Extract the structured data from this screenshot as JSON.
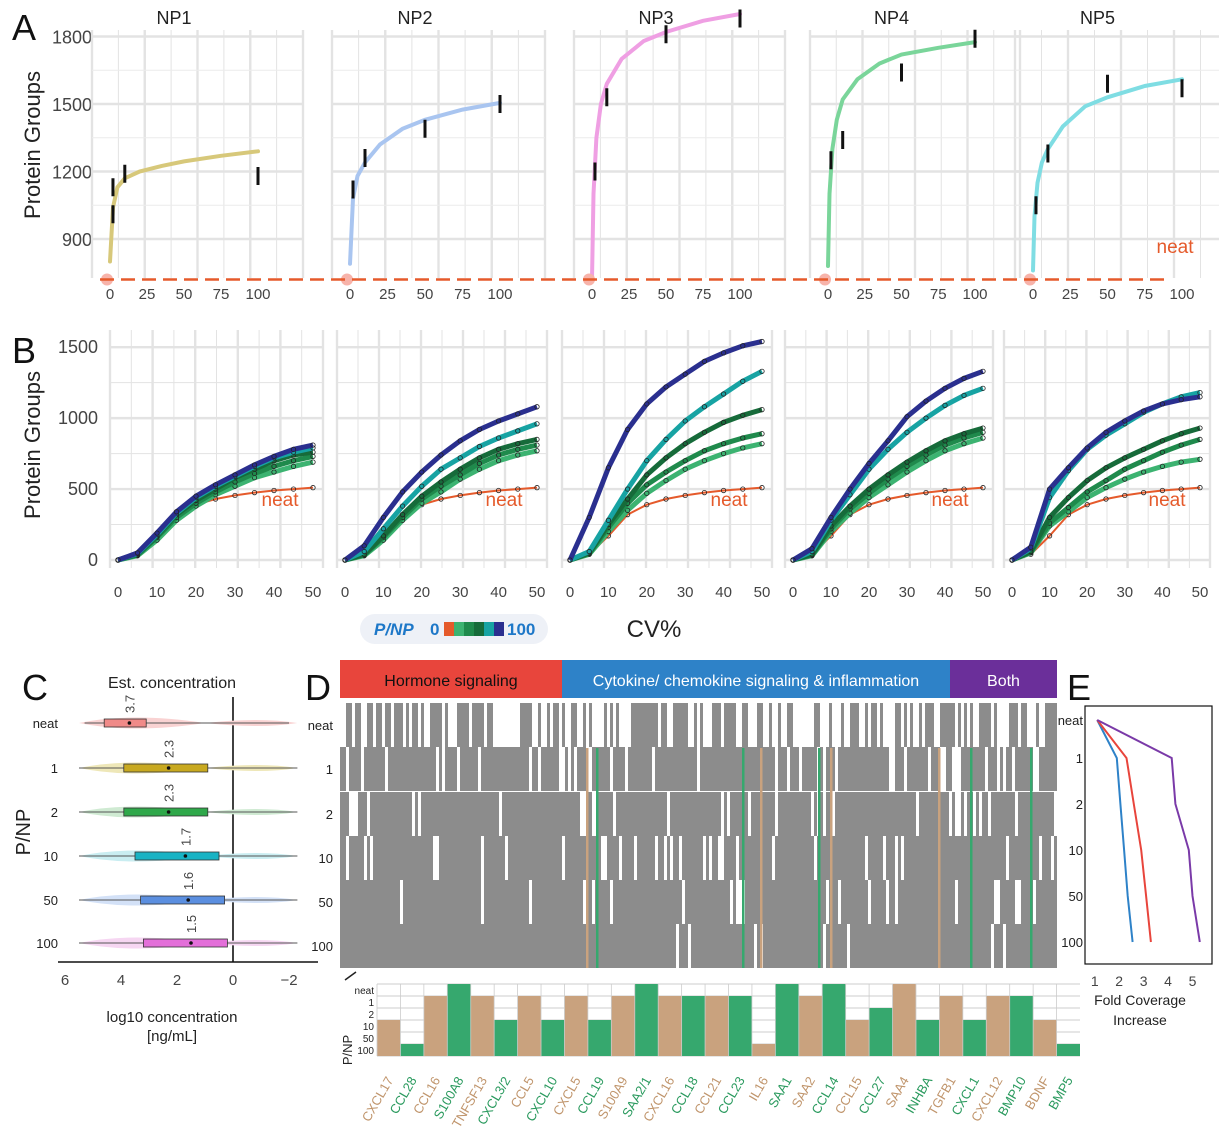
{
  "panel_letters": [
    "A",
    "B",
    "C",
    "D",
    "E"
  ],
  "colors": {
    "np1": "#d7c87a",
    "np2": "#a9c5f0",
    "np3": "#ef9fe3",
    "np4": "#7ad59a",
    "np5": "#7fdde3",
    "neat": "#e55a2b",
    "hormone": "#e8453c",
    "cytokine": "#2e82c8",
    "both": "#6b2f9a",
    "brown": "#c9a27e",
    "green": "#36a86e",
    "gray": "#8c8c8c"
  },
  "chart_data": [
    {
      "type": "line",
      "panel": "A",
      "ylabel": "Protein Groups",
      "ylim": [
        700,
        1900
      ],
      "yticks": [
        900,
        1200,
        1500,
        1800
      ],
      "xlim": [
        0,
        100
      ],
      "xticks": [
        0,
        25,
        50,
        75,
        100
      ],
      "neat_label": "neat",
      "neat_value": 720,
      "series": [
        {
          "name": "NP1",
          "x": [
            0,
            2,
            5,
            10,
            20,
            35,
            50,
            75,
            100
          ],
          "y": [
            800,
            1040,
            1130,
            1170,
            1200,
            1225,
            1245,
            1270,
            1290
          ],
          "points": [
            {
              "x": 2,
              "y": 1010
            },
            {
              "x": 2,
              "y": 1130
            },
            {
              "x": 10,
              "y": 1190
            },
            {
              "x": 100,
              "y": 1180
            }
          ]
        },
        {
          "name": "NP2",
          "x": [
            0,
            2,
            5,
            10,
            20,
            35,
            50,
            75,
            100
          ],
          "y": [
            790,
            1080,
            1180,
            1240,
            1320,
            1390,
            1430,
            1475,
            1505
          ],
          "points": [
            {
              "x": 2,
              "y": 1120
            },
            {
              "x": 10,
              "y": 1260
            },
            {
              "x": 50,
              "y": 1390
            },
            {
              "x": 100,
              "y": 1500
            }
          ]
        },
        {
          "name": "NP3",
          "x": [
            0,
            1,
            3,
            6,
            10,
            20,
            35,
            50,
            75,
            100
          ],
          "y": [
            720,
            1100,
            1350,
            1500,
            1590,
            1700,
            1780,
            1820,
            1870,
            1900
          ],
          "points": [
            {
              "x": 2,
              "y": 1200
            },
            {
              "x": 10,
              "y": 1530
            },
            {
              "x": 50,
              "y": 1810
            },
            {
              "x": 100,
              "y": 1880
            }
          ]
        },
        {
          "name": "NP4",
          "x": [
            0,
            1,
            3,
            6,
            10,
            20,
            35,
            50,
            75,
            100
          ],
          "y": [
            780,
            1100,
            1300,
            1430,
            1520,
            1610,
            1680,
            1720,
            1750,
            1775
          ],
          "points": [
            {
              "x": 2,
              "y": 1250
            },
            {
              "x": 10,
              "y": 1340
            },
            {
              "x": 50,
              "y": 1640
            },
            {
              "x": 100,
              "y": 1790
            }
          ]
        },
        {
          "name": "NP5",
          "x": [
            0,
            1,
            3,
            6,
            10,
            20,
            35,
            50,
            75,
            100
          ],
          "y": [
            760,
            1000,
            1150,
            1240,
            1300,
            1400,
            1490,
            1530,
            1580,
            1610
          ],
          "points": [
            {
              "x": 2,
              "y": 1050
            },
            {
              "x": 10,
              "y": 1280
            },
            {
              "x": 50,
              "y": 1590
            },
            {
              "x": 100,
              "y": 1570
            }
          ]
        }
      ]
    },
    {
      "type": "line",
      "panel": "B",
      "ylabel": "Protein Groups",
      "xlabel": "CV%",
      "ylim": [
        0,
        1600
      ],
      "yticks": [
        0,
        500,
        1000,
        1500
      ],
      "xlim": [
        0,
        50
      ],
      "xticks": [
        0,
        10,
        20,
        30,
        40,
        50
      ],
      "x": [
        0,
        5,
        10,
        15,
        20,
        25,
        30,
        35,
        40,
        45,
        50
      ],
      "legend_title": "P/NP",
      "legend_min": "0",
      "legend_max": "100",
      "neat_label": "neat",
      "panels": [
        [
          {
            "name": "neat",
            "color": "#e55a2b",
            "y": [
              0,
              40,
              170,
              320,
              390,
              430,
              455,
              475,
              490,
              500,
              510
            ]
          },
          {
            "name": "1",
            "color": "#3cb371",
            "y": [
              0,
              30,
              140,
              280,
              380,
              460,
              520,
              580,
              620,
              660,
              690
            ]
          },
          {
            "name": "2",
            "color": "#1f8a4c",
            "y": [
              0,
              35,
              160,
              300,
              400,
              480,
              550,
              610,
              660,
              700,
              730
            ]
          },
          {
            "name": "10",
            "color": "#166b3a",
            "y": [
              0,
              40,
              170,
              320,
              420,
              500,
              580,
              640,
              700,
              740,
              760
            ]
          },
          {
            "name": "50",
            "color": "#17a3a3",
            "y": [
              0,
              45,
              180,
              330,
              440,
              520,
              590,
              660,
              720,
              760,
              790
            ]
          },
          {
            "name": "100",
            "color": "#2a2f8f",
            "y": [
              0,
              50,
              190,
              340,
              450,
              530,
              600,
              670,
              730,
              780,
              810
            ]
          }
        ],
        [
          {
            "name": "neat",
            "color": "#e55a2b",
            "y": [
              0,
              40,
              170,
              320,
              390,
              430,
              455,
              475,
              490,
              500,
              510
            ]
          },
          {
            "name": "1",
            "color": "#3cb371",
            "y": [
              0,
              30,
              140,
              280,
              400,
              480,
              570,
              640,
              700,
              740,
              770
            ]
          },
          {
            "name": "2",
            "color": "#1f8a4c",
            "y": [
              0,
              35,
              160,
              300,
              430,
              520,
              600,
              680,
              740,
              780,
              810
            ]
          },
          {
            "name": "10",
            "color": "#166b3a",
            "y": [
              0,
              40,
              170,
              320,
              450,
              550,
              640,
              720,
              780,
              820,
              850
            ]
          },
          {
            "name": "50",
            "color": "#17a3a3",
            "y": [
              0,
              60,
              220,
              380,
              520,
              640,
              720,
              800,
              860,
              910,
              960
            ]
          },
          {
            "name": "100",
            "color": "#2a2f8f",
            "y": [
              0,
              100,
              300,
              480,
              620,
              740,
              840,
              920,
              980,
              1030,
              1080
            ]
          }
        ],
        [
          {
            "name": "neat",
            "color": "#e55a2b",
            "y": [
              0,
              40,
              170,
              320,
              390,
              430,
              455,
              475,
              490,
              500,
              510
            ]
          },
          {
            "name": "1",
            "color": "#3cb371",
            "y": [
              0,
              40,
              200,
              350,
              470,
              560,
              640,
              700,
              750,
              790,
              820
            ]
          },
          {
            "name": "2",
            "color": "#1f8a4c",
            "y": [
              0,
              45,
              230,
              400,
              530,
              620,
              700,
              770,
              820,
              860,
              890
            ]
          },
          {
            "name": "10",
            "color": "#166b3a",
            "y": [
              0,
              50,
              250,
              430,
              600,
              720,
              820,
              900,
              970,
              1020,
              1060
            ]
          },
          {
            "name": "50",
            "color": "#17a3a3",
            "y": [
              0,
              60,
              280,
              500,
              700,
              850,
              980,
              1080,
              1170,
              1260,
              1330
            ]
          },
          {
            "name": "100",
            "color": "#2a2f8f",
            "y": [
              0,
              300,
              650,
              920,
              1100,
              1220,
              1310,
              1400,
              1460,
              1510,
              1540
            ]
          }
        ],
        [
          {
            "name": "neat",
            "color": "#e55a2b",
            "y": [
              0,
              40,
              170,
              320,
              390,
              430,
              455,
              475,
              490,
              500,
              510
            ]
          },
          {
            "name": "1",
            "color": "#3cb371",
            "y": [
              0,
              30,
              200,
              330,
              440,
              530,
              620,
              700,
              770,
              820,
              860
            ]
          },
          {
            "name": "2",
            "color": "#1f8a4c",
            "y": [
              0,
              35,
              220,
              360,
              470,
              570,
              660,
              740,
              810,
              860,
              900
            ]
          },
          {
            "name": "10",
            "color": "#166b3a",
            "y": [
              0,
              40,
              240,
              380,
              500,
              600,
              690,
              770,
              840,
              890,
              930
            ]
          },
          {
            "name": "50",
            "color": "#17a3a3",
            "y": [
              0,
              60,
              280,
              460,
              640,
              780,
              900,
              1000,
              1090,
              1160,
              1210
            ]
          },
          {
            "name": "100",
            "color": "#2a2f8f",
            "y": [
              0,
              80,
              300,
              500,
              680,
              840,
              1010,
              1120,
              1210,
              1280,
              1330
            ]
          }
        ],
        [
          {
            "name": "neat",
            "color": "#e55a2b",
            "y": [
              0,
              40,
              170,
              320,
              390,
              430,
              455,
              475,
              490,
              500,
              510
            ]
          },
          {
            "name": "1",
            "color": "#3cb371",
            "y": [
              0,
              50,
              240,
              340,
              440,
              510,
              570,
              620,
              660,
              690,
              710
            ]
          },
          {
            "name": "2",
            "color": "#1f8a4c",
            "y": [
              0,
              55,
              260,
              370,
              480,
              560,
              640,
              700,
              760,
              810,
              850
            ]
          },
          {
            "name": "10",
            "color": "#166b3a",
            "y": [
              0,
              60,
              300,
              440,
              560,
              650,
              720,
              780,
              840,
              890,
              930
            ]
          },
          {
            "name": "50",
            "color": "#17a3a3",
            "y": [
              0,
              80,
              440,
              630,
              780,
              880,
              960,
              1040,
              1100,
              1150,
              1180
            ]
          },
          {
            "name": "100",
            "color": "#2a2f8f",
            "y": [
              0,
              90,
              500,
              650,
              790,
              900,
              980,
              1050,
              1100,
              1130,
              1150
            ]
          }
        ]
      ]
    },
    {
      "type": "box",
      "panel": "C",
      "title": "Est. concentration",
      "ylabel": "P/NP",
      "xlabel": "log10 concentration",
      "xlabel_unit": "[ng/mL]",
      "xlim": [
        6,
        -2.5
      ],
      "xticks": [
        6,
        4,
        2,
        0,
        -2
      ],
      "xtick_labels": [
        "6",
        "4",
        "2",
        "0",
        "−2"
      ],
      "categories": [
        "neat",
        "1",
        "2",
        "10",
        "50",
        "100"
      ],
      "box_colors": [
        "#f08a88",
        "#c8a920",
        "#2fa84a",
        "#19b3c4",
        "#5b8fe0",
        "#e36fd9"
      ],
      "violin_colors": [
        "#f9d2d2",
        "#eee7b8",
        "#cfead2",
        "#c9edf1",
        "#d3e1f7",
        "#f6d6f2"
      ],
      "medians": [
        3.7,
        2.3,
        2.3,
        1.7,
        1.6,
        1.5
      ],
      "median_labels": [
        "3.7",
        "2.3",
        "2.3",
        "1.7",
        "1.6",
        "1.5"
      ],
      "q1": [
        3.1,
        0.9,
        0.9,
        0.5,
        0.3,
        0.2
      ],
      "q3": [
        4.6,
        3.9,
        3.9,
        3.5,
        3.3,
        3.2
      ],
      "whisker_lo": [
        -2.0,
        -2.3,
        -2.3,
        -2.3,
        -2.3,
        -2.3
      ],
      "whisker_hi": [
        5.3,
        5.5,
        5.5,
        5.5,
        5.5,
        5.5
      ]
    },
    {
      "type": "heatmap",
      "panel": "D",
      "groups": [
        {
          "label": "Hormone signaling",
          "color": "#e8453c"
        },
        {
          "label": "Cytokine/ chemokine signaling & inflammation",
          "color": "#2e82c8"
        },
        {
          "label": "Both",
          "color": "#6b2f9a"
        }
      ],
      "rows": [
        "neat",
        "1",
        "2",
        "10",
        "50",
        "100"
      ],
      "bottom_rows": [
        "neat",
        "1",
        "2",
        "10",
        "50",
        "100"
      ],
      "bottom_ylabel": "P/NP",
      "genes": [
        "CXCL17",
        "CCL28",
        "CCL16",
        "S100A8",
        "TNFSF13",
        "CXCL3/2",
        "CCL5",
        "CXCL10",
        "CXCL5",
        "CCL19",
        "S100A9",
        "SAA2/1",
        "CXCL16",
        "CCL18",
        "CCL21",
        "CCL23",
        "IL16",
        "SAA1",
        "SAA2",
        "CCL14",
        "CCL15",
        "CCL27",
        "SAA4",
        "INHBA",
        "TGFB1",
        "CXCL1",
        "CXCL12",
        "BMP10",
        "BDNF",
        "BMP5"
      ],
      "gene_colors": [
        "brown",
        "green",
        "brown",
        "green",
        "brown",
        "green",
        "brown",
        "green",
        "brown",
        "green",
        "brown",
        "green",
        "brown",
        "green",
        "brown",
        "green",
        "brown",
        "green",
        "brown",
        "green",
        "brown",
        "green",
        "brown",
        "green",
        "brown",
        "green",
        "brown",
        "green",
        "brown",
        "green"
      ],
      "gene_first_row": [
        3,
        5,
        1,
        0,
        1,
        3,
        1,
        3,
        1,
        3,
        1,
        0,
        1,
        1,
        1,
        1,
        5,
        0,
        1,
        0,
        3,
        2,
        0,
        3,
        1,
        3,
        1,
        1,
        3,
        5
      ]
    },
    {
      "type": "line",
      "panel": "E",
      "xlabel": "Fold Coverage\nIncrease",
      "rows": [
        "neat",
        "1",
        "2",
        "10",
        "50",
        "100"
      ],
      "xlim": [
        0.6,
        5.8
      ],
      "xticks": [
        1,
        2,
        3,
        4,
        5
      ],
      "series": [
        {
          "color": "#2e82c8",
          "x": [
            1.1,
            1.9,
            2.05,
            2.2,
            2.35,
            2.55
          ]
        },
        {
          "color": "#e8453c",
          "x": [
            1.1,
            2.3,
            2.6,
            2.9,
            3.1,
            3.3
          ]
        },
        {
          "color": "#7a3aa8",
          "x": [
            1.1,
            4.15,
            4.3,
            4.85,
            5.0,
            5.3
          ]
        }
      ]
    }
  ]
}
